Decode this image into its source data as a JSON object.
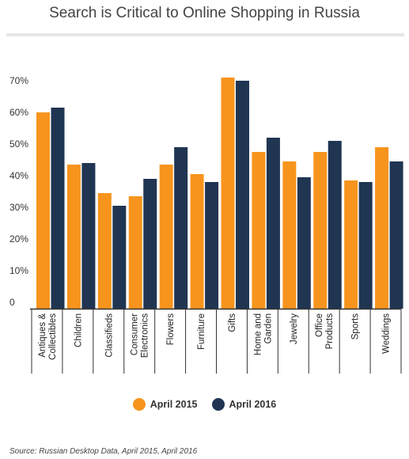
{
  "chart_data": {
    "type": "bar",
    "title": "Search is Critical to Online Shopping in Russia",
    "categories": [
      [
        "Antiques &",
        "Collectibles"
      ],
      [
        "Children"
      ],
      [
        "Classifieds"
      ],
      [
        "Consumer",
        "Electronics"
      ],
      [
        "Flowers"
      ],
      [
        "Furniture"
      ],
      [
        "Gifts"
      ],
      [
        "Home and",
        "Garden"
      ],
      [
        "Jewelry"
      ],
      [
        "Office",
        "Products"
      ],
      [
        "Sports"
      ],
      [
        "Weddings"
      ]
    ],
    "series": [
      {
        "name": "April 2015",
        "color": "#f7941d",
        "values": [
          62,
          45.5,
          36.5,
          35.5,
          45.5,
          42.5,
          73,
          49.5,
          46.5,
          49.5,
          40.5,
          51
        ]
      },
      {
        "name": "April 2016",
        "color": "#1f3552",
        "values": [
          63.5,
          46,
          32.5,
          41,
          51,
          40,
          72,
          54,
          41.5,
          53,
          40,
          46.5
        ]
      }
    ],
    "yticks": [
      "0",
      "10%",
      "20%",
      "30%",
      "40%",
      "50%",
      "60%",
      "70%"
    ],
    "ylim": [
      0,
      70
    ],
    "xlabel": "",
    "ylabel": "",
    "grid": false,
    "legend_position": "bottom"
  },
  "source": "Source: Russian Desktop Data, April 2015, April 2016"
}
